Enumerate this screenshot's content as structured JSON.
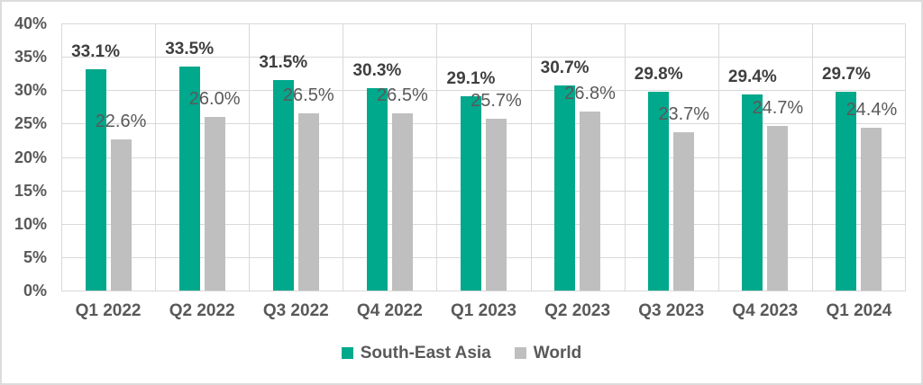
{
  "chart_data": {
    "type": "bar",
    "title": "",
    "categories": [
      "Q1 2022",
      "Q2 2022",
      "Q3 2022",
      "Q4 2022",
      "Q1 2023",
      "Q2 2023",
      "Q3 2023",
      "Q4 2023",
      "Q1 2024"
    ],
    "series": [
      {
        "name": "South-East Asia",
        "color": "#00A88C",
        "values": [
          33.1,
          33.5,
          31.5,
          30.3,
          29.1,
          30.7,
          29.8,
          29.4,
          29.7
        ],
        "labels": [
          "33.1%",
          "33.5%",
          "31.5%",
          "30.3%",
          "29.1%",
          "30.7%",
          "29.8%",
          "29.4%",
          "29.7%"
        ]
      },
      {
        "name": "World",
        "color": "#BFBFBF",
        "values": [
          22.6,
          26.0,
          26.5,
          26.5,
          25.7,
          26.8,
          23.7,
          24.7,
          24.4
        ],
        "labels": [
          "22.6%",
          "26.0%",
          "26.5%",
          "26.5%",
          "25.7%",
          "26.8%",
          "23.7%",
          "24.7%",
          "24.4%"
        ]
      }
    ],
    "y_ticks": [
      "0%",
      "5%",
      "10%",
      "15%",
      "20%",
      "25%",
      "30%",
      "35%",
      "40%"
    ],
    "ylim": [
      0,
      40
    ],
    "y_step": 5,
    "grid": true,
    "vertical_category_separators": true,
    "legend_position": "bottom",
    "data_label_decimals": 1,
    "data_label_suffix": "%"
  },
  "colors": {
    "series_south_east_asia": "#00A88C",
    "series_world": "#BFBFBF",
    "gridline": "#D9D9D9",
    "axis_text": "#595959",
    "data_label_primary": "#3F3F3F",
    "data_label_secondary": "#595959",
    "frame_border": "#DCDCDC",
    "background": "#FFFFFF"
  }
}
